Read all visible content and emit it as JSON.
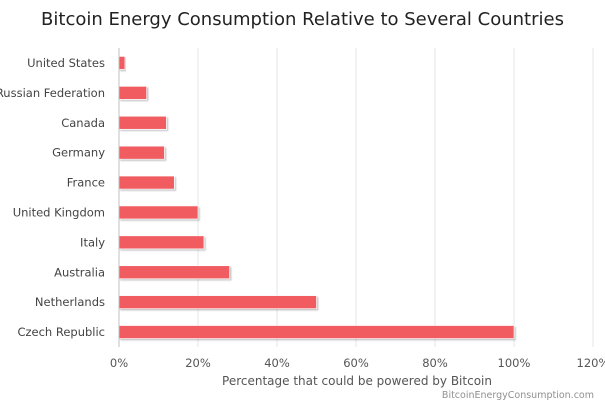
{
  "chart_data": {
    "type": "bar",
    "orientation": "horizontal",
    "title": "Bitcoin Energy Consumption Relative to Several Countries",
    "xlabel": "Percentage that could be powered by Bitcoin",
    "ylabel": "",
    "categories": [
      "United States",
      "Russian Federation",
      "Canada",
      "Germany",
      "France",
      "United Kingdom",
      "Italy",
      "Australia",
      "Netherlands",
      "Czech Republic"
    ],
    "values": [
      1.5,
      7,
      12,
      11.5,
      14,
      20,
      21.5,
      28,
      50,
      100
    ],
    "x_ticks": [
      "0%",
      "20%",
      "40%",
      "60%",
      "80%",
      "100%",
      "120%"
    ],
    "xlim": [
      0,
      120
    ],
    "grid": "vertical",
    "legend": "none",
    "bar_color": "#f15c60",
    "credit": "BitcoinEnergyConsumption.com"
  }
}
